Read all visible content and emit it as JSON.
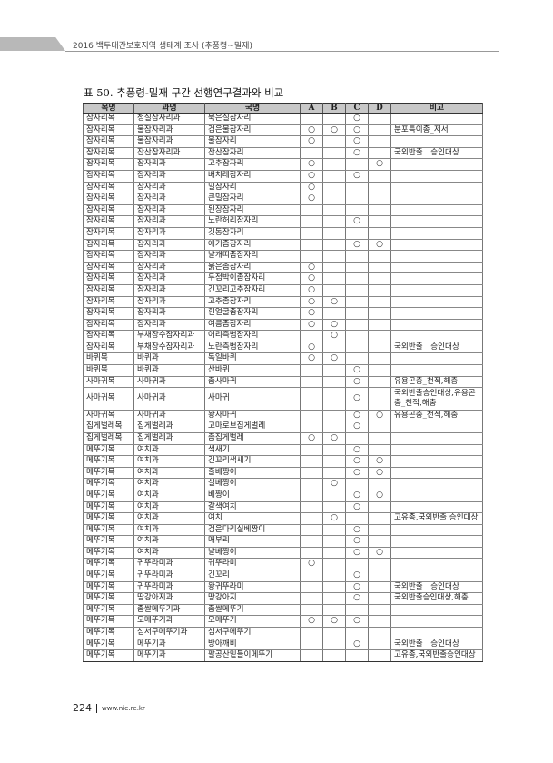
{
  "running_header": "2016 백두대간보호지역 생태계 조사 (추풍령~밀재)",
  "table_title": "표 50. 추풍령-밀재 구간 선행연구결과와 비교",
  "columns": [
    "목명",
    "과명",
    "국명",
    "A",
    "B",
    "C",
    "D",
    "비고"
  ],
  "rows": [
    [
      "잠자리목",
      "청실잠자리과",
      "묵은실잠자리",
      "",
      "",
      "○",
      "",
      ""
    ],
    [
      "잠자리목",
      "물잠자리과",
      "검은물잠자리",
      "○",
      "○",
      "○",
      "",
      "분포특이종_저서"
    ],
    [
      "잠자리목",
      "물잠자리과",
      "물잠자리",
      "○",
      "",
      "○",
      "",
      ""
    ],
    [
      "잠자리목",
      "잔산잠자리과",
      "잔산잠자리",
      "",
      "",
      "○",
      "",
      "국외반출　승인대상"
    ],
    [
      "잠자리목",
      "잠자리과",
      "고추잠자리",
      "○",
      "",
      "",
      "○",
      ""
    ],
    [
      "잠자리목",
      "잠자리과",
      "배치레잠자리",
      "○",
      "",
      "○",
      "",
      ""
    ],
    [
      "잠자리목",
      "잠자리과",
      "밀잠자리",
      "○",
      "",
      "",
      "",
      ""
    ],
    [
      "잠자리목",
      "잠자리과",
      "큰밀잠자리",
      "○",
      "",
      "",
      "",
      ""
    ],
    [
      "잠자리목",
      "잠자리과",
      "된장잠자리",
      "",
      "",
      "",
      "",
      ""
    ],
    [
      "잠자리목",
      "잠자리과",
      "노란허리잠자리",
      "",
      "",
      "○",
      "",
      ""
    ],
    [
      "잠자리목",
      "잠자리과",
      "깃동잠자리",
      "",
      "",
      "",
      "",
      ""
    ],
    [
      "잠자리목",
      "잠자리과",
      "애기좀잠자리",
      "",
      "",
      "○",
      "○",
      ""
    ],
    [
      "잠자리목",
      "잠자리과",
      "날개띠좀잠자리",
      "",
      "",
      "",
      "",
      ""
    ],
    [
      "잠자리목",
      "잠자리과",
      "붉은좀잠자리",
      "○",
      "",
      "",
      "",
      ""
    ],
    [
      "잠자리목",
      "잠자리과",
      "두점박이좀잠자리",
      "○",
      "",
      "",
      "",
      ""
    ],
    [
      "잠자리목",
      "잠자리과",
      "긴꼬리고추잠자리",
      "○",
      "",
      "",
      "",
      ""
    ],
    [
      "잠자리목",
      "잠자리과",
      "고추좀잠자리",
      "○",
      "○",
      "",
      "",
      ""
    ],
    [
      "잠자리목",
      "잠자리과",
      "흰얼굴좀잠자리",
      "○",
      "",
      "",
      "",
      ""
    ],
    [
      "잠자리목",
      "잠자리과",
      "여름좀잠자리",
      "○",
      "○",
      "",
      "",
      ""
    ],
    [
      "잠자리목",
      "부채장수잠자리과",
      "어리측범잠자리",
      "",
      "○",
      "",
      "",
      ""
    ],
    [
      "잠자리목",
      "부채장수잠자리과",
      "노란측범잠자리",
      "○",
      "",
      "",
      "",
      "국외반출　승인대상"
    ],
    [
      "바퀴목",
      "바퀴과",
      "독일바퀴",
      "○",
      "○",
      "",
      "",
      ""
    ],
    [
      "바퀴목",
      "바퀴과",
      "산바퀴",
      "",
      "",
      "○",
      "",
      ""
    ],
    [
      "사마귀목",
      "사마귀과",
      "좀사마귀",
      "",
      "",
      "○",
      "",
      "유용곤충_천적,해충"
    ],
    [
      "사마귀목",
      "사마귀과",
      "사마귀",
      "",
      "",
      "○",
      "",
      "국외반출승인대상,유용곤충_천적,해충"
    ],
    [
      "사마귀목",
      "사마귀과",
      "왕사마귀",
      "",
      "",
      "○",
      "○",
      "유용곤충_천적,해충"
    ],
    [
      "집게벌레목",
      "집게벌레과",
      "고마로브집게벌레",
      "",
      "",
      "○",
      "",
      ""
    ],
    [
      "집게벌레목",
      "집게벌레과",
      "좀집게벌레",
      "○",
      "○",
      "",
      "",
      ""
    ],
    [
      "메뚜기목",
      "여치과",
      "색새기",
      "",
      "",
      "○",
      "",
      ""
    ],
    [
      "메뚜기목",
      "여치과",
      "긴꼬리색새기",
      "",
      "",
      "○",
      "○",
      ""
    ],
    [
      "메뚜기목",
      "여치과",
      "줄베짱이",
      "",
      "",
      "○",
      "○",
      ""
    ],
    [
      "메뚜기목",
      "여치과",
      "실베짱이",
      "",
      "○",
      "",
      "",
      ""
    ],
    [
      "메뚜기목",
      "여치과",
      "베짱이",
      "",
      "",
      "○",
      "○",
      ""
    ],
    [
      "메뚜기목",
      "여치과",
      "갈색여치",
      "",
      "",
      "○",
      "",
      ""
    ],
    [
      "메뚜기목",
      "여치과",
      "여치",
      "",
      "○",
      "",
      "",
      "고유종,국외반출 승인대상"
    ],
    [
      "메뚜기목",
      "여치과",
      "검은다리실베짱이",
      "",
      "",
      "○",
      "",
      ""
    ],
    [
      "메뚜기목",
      "여치과",
      "매부리",
      "",
      "",
      "○",
      "",
      ""
    ],
    [
      "메뚜기목",
      "여치과",
      "날베짱이",
      "",
      "",
      "○",
      "○",
      ""
    ],
    [
      "메뚜기목",
      "귀뚜라미과",
      "귀뚜라미",
      "○",
      "",
      "",
      "",
      ""
    ],
    [
      "메뚜기목",
      "귀뚜라미과",
      "긴꼬리",
      "",
      "",
      "○",
      "",
      ""
    ],
    [
      "메뚜기목",
      "귀뚜라미과",
      "왕귀뚜라미",
      "",
      "",
      "○",
      "",
      "국외반출　승인대상"
    ],
    [
      "메뚜기목",
      "땅강아지과",
      "땅강아지",
      "",
      "",
      "○",
      "",
      "국외반출승인대상,해충"
    ],
    [
      "메뚜기목",
      "좀쌀메뚜기과",
      "좀쌀메뚜기",
      "",
      "",
      "",
      "",
      ""
    ],
    [
      "메뚜기목",
      "모메뚜기과",
      "모메뚜기",
      "○",
      "○",
      "○",
      "",
      ""
    ],
    [
      "메뚜기목",
      "섬서구메뚜기과",
      "섬서구메뚜기",
      "",
      "",
      "",
      "",
      ""
    ],
    [
      "메뚜기목",
      "메뚜기과",
      "방아깨비",
      "",
      "",
      "○",
      "",
      "국외반출　승인대상"
    ],
    [
      "메뚜기목",
      "메뚜기과",
      "팔공산밑들이메뚜기",
      "",
      "",
      "",
      "",
      "고유종,국외반출승인대상"
    ]
  ],
  "footer": {
    "page_number": "224",
    "url": "www.nie.re.kr"
  }
}
